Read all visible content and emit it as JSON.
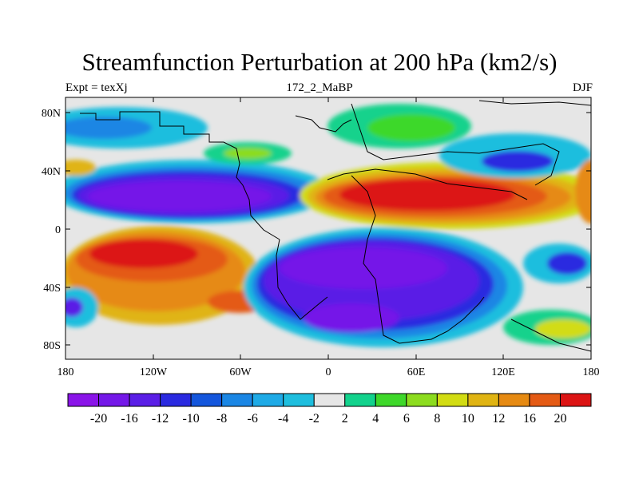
{
  "title": "Streamfunction Perturbation at 200 hPa (km2/s)",
  "subtitle_left": "Expt = texXj",
  "subtitle_center": "172_2_MaBP",
  "subtitle_right": "DJF",
  "lat_ticks": [
    "80N",
    "40N",
    "0",
    "40S",
    "80S"
  ],
  "lon_ticks": [
    "180",
    "120W",
    "60W",
    "0",
    "60E",
    "120E",
    "180"
  ],
  "colorbar": {
    "labels": [
      "-20",
      "-16",
      "-12",
      "-10",
      "-8",
      "-6",
      "-4",
      "-2",
      "2",
      "4",
      "6",
      "8",
      "10",
      "12",
      "16",
      "20"
    ],
    "colors": [
      "#8a14e8",
      "#7418e8",
      "#5a1ee6",
      "#2a2ae0",
      "#1456dc",
      "#1a86e4",
      "#1eaae6",
      "#1ebede",
      "#e6e6e6",
      "#12d28c",
      "#3ed82a",
      "#8cdc1e",
      "#d2dc12",
      "#e0b412",
      "#e68a12",
      "#e45a14",
      "#dc1414"
    ]
  }
}
